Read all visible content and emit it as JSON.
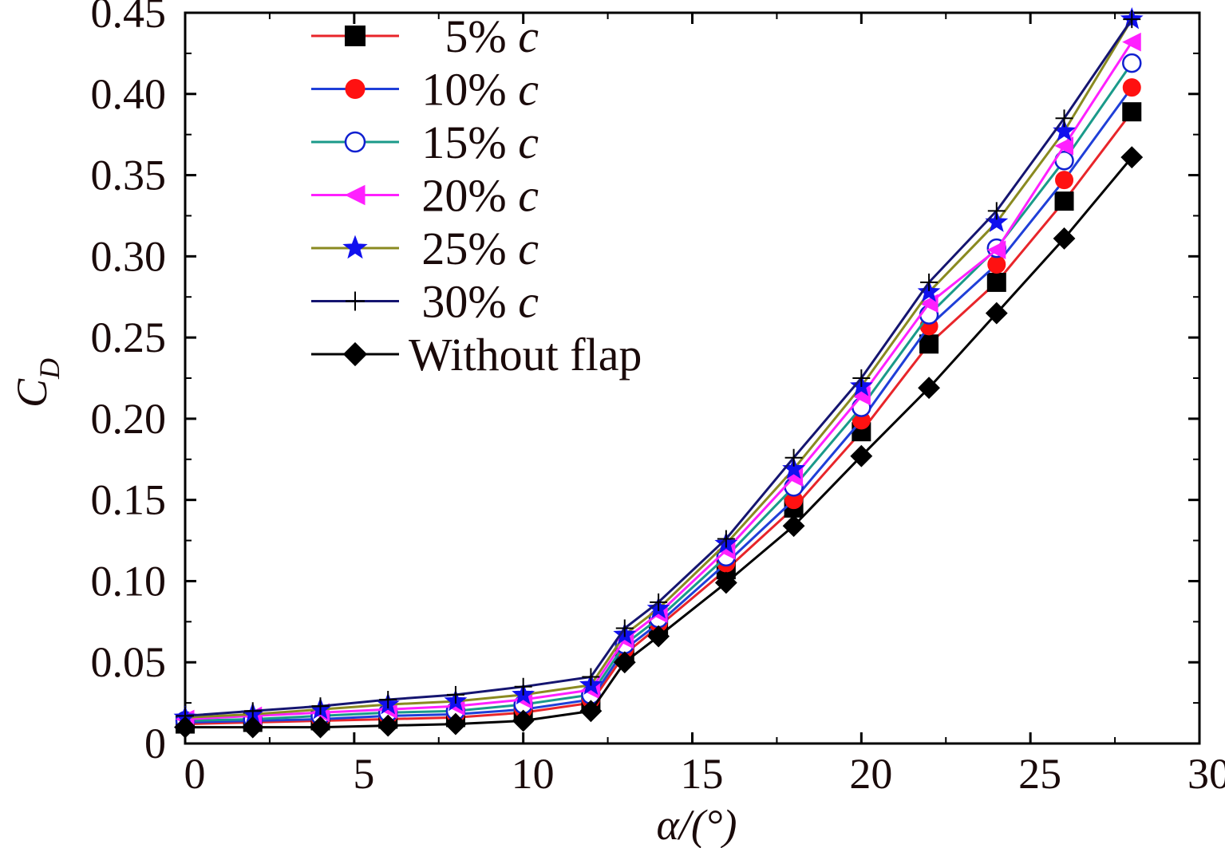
{
  "chart_data": {
    "type": "line",
    "title": "",
    "xlabel": "α/(°)",
    "ylabel": "CD",
    "ylabel_main": "C",
    "ylabel_sub": "D",
    "xlim": [
      0,
      30
    ],
    "ylim": [
      0,
      0.45
    ],
    "xticks": [
      0,
      5,
      10,
      15,
      20,
      25,
      30
    ],
    "xtick_labels": [
      "0",
      "5",
      "10",
      "15",
      "20",
      "25",
      "30"
    ],
    "yticks": [
      0,
      0.05,
      0.1,
      0.15,
      0.2,
      0.25,
      0.3,
      0.35,
      0.4,
      0.45
    ],
    "ytick_labels": [
      "0",
      "0.05",
      "0.10",
      "0.15",
      "0.20",
      "0.25",
      "0.30",
      "0.35",
      "0.40",
      "0.45"
    ],
    "grid": false,
    "legend_position": "top-left",
    "x": [
      0,
      2,
      4,
      6,
      8,
      10,
      12,
      13,
      14,
      16,
      18,
      20,
      22,
      24,
      26,
      28
    ],
    "series": [
      {
        "name": "5% c",
        "label_num": "5%",
        "label_var": "c",
        "line_color": "#e8252a",
        "marker": "square",
        "marker_color": "#000000",
        "marker_fill": true,
        "values": [
          0.012,
          0.013,
          0.014,
          0.015,
          0.016,
          0.019,
          0.025,
          0.055,
          0.072,
          0.107,
          0.145,
          0.192,
          0.246,
          0.284,
          0.334,
          0.389
        ]
      },
      {
        "name": "10% c",
        "label_num": "10%",
        "label_var": "c",
        "line_color": "#1f3fd8",
        "marker": "circle",
        "marker_color": "#ff1111",
        "marker_fill": true,
        "values": [
          0.013,
          0.014,
          0.015,
          0.017,
          0.018,
          0.021,
          0.027,
          0.058,
          0.074,
          0.111,
          0.15,
          0.199,
          0.257,
          0.295,
          0.347,
          0.404
        ]
      },
      {
        "name": "15% c",
        "label_num": "15%",
        "label_var": "c",
        "line_color": "#1a9a8a",
        "marker": "circle",
        "marker_color": "#1020d0",
        "marker_fill": false,
        "values": [
          0.014,
          0.015,
          0.017,
          0.019,
          0.02,
          0.024,
          0.03,
          0.061,
          0.077,
          0.115,
          0.158,
          0.207,
          0.264,
          0.305,
          0.359,
          0.419
        ]
      },
      {
        "name": "20% c",
        "label_num": "20%",
        "label_var": "c",
        "line_color": "#ff20ff",
        "marker": "triangle-left",
        "marker_color": "#ff20ff",
        "marker_fill": true,
        "values": [
          0.015,
          0.017,
          0.019,
          0.021,
          0.023,
          0.027,
          0.033,
          0.064,
          0.08,
          0.119,
          0.164,
          0.214,
          0.271,
          0.304,
          0.368,
          0.432
        ]
      },
      {
        "name": "25% c",
        "label_num": "25%",
        "label_var": "c",
        "line_color": "#8a8a20",
        "marker": "star",
        "marker_color": "#1010ee",
        "marker_fill": true,
        "values": [
          0.016,
          0.018,
          0.021,
          0.024,
          0.026,
          0.03,
          0.036,
          0.067,
          0.083,
          0.123,
          0.169,
          0.22,
          0.278,
          0.321,
          0.377,
          0.446
        ]
      },
      {
        "name": "30% c",
        "label_num": "30%",
        "label_var": "c",
        "line_color": "#151570",
        "marker": "plus",
        "marker_color": "#000000",
        "marker_fill": false,
        "values": [
          0.017,
          0.02,
          0.023,
          0.027,
          0.03,
          0.035,
          0.041,
          0.071,
          0.087,
          0.126,
          0.176,
          0.225,
          0.284,
          0.328,
          0.385,
          0.446
        ]
      },
      {
        "name": "Without flap",
        "label_num": "Without flap",
        "label_var": "",
        "line_color": "#000000",
        "marker": "diamond",
        "marker_color": "#000000",
        "marker_fill": true,
        "values": [
          0.01,
          0.01,
          0.01,
          0.011,
          0.012,
          0.014,
          0.02,
          0.05,
          0.066,
          0.099,
          0.134,
          0.177,
          0.219,
          0.265,
          0.311,
          0.361
        ]
      }
    ]
  }
}
